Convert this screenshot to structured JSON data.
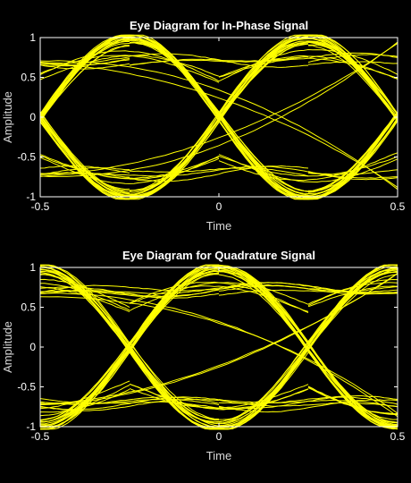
{
  "colors": {
    "background": "#000000",
    "axes_face": "#000000",
    "axes_edge": "#ffffff",
    "text": "#ffffff",
    "label": "#d9d9d9",
    "trace": "#ffff00"
  },
  "chart_data": [
    {
      "type": "line",
      "title": "Eye Diagram for In-Phase Signal",
      "xlabel": "Time",
      "ylabel": "Amplitude",
      "xlim": [
        -0.5,
        0.5
      ],
      "ylim": [
        -1,
        1
      ],
      "xticks": [
        -0.5,
        0,
        0.5
      ],
      "xtick_labels": [
        "-0.5",
        "0",
        "0.5"
      ],
      "yticks": [
        -1,
        -0.5,
        0,
        0.5,
        1
      ],
      "ytick_labels": [
        "-1",
        "-0.5",
        "0",
        "0.5",
        "1"
      ],
      "grid": false,
      "eye_crossing_times": [
        -0.5,
        0,
        0.5
      ],
      "eye_peak_times": [
        -0.25,
        0.25
      ],
      "signal_levels": [
        -1,
        -0.707,
        0,
        0.707,
        1
      ]
    },
    {
      "type": "line",
      "title": "Eye Diagram for Quadrature Signal",
      "xlabel": "Time",
      "ylabel": "Amplitude",
      "xlim": [
        -0.5,
        0.5
      ],
      "ylim": [
        -1,
        1
      ],
      "xticks": [
        -0.5,
        0,
        0.5
      ],
      "xtick_labels": [
        "-0.5",
        "0",
        "0.5"
      ],
      "yticks": [
        -1,
        -0.5,
        0,
        0.5,
        1
      ],
      "ytick_labels": [
        "-1",
        "-0.5",
        "0",
        "0.5",
        "1"
      ],
      "grid": false,
      "eye_crossing_times": [
        -0.25,
        0.25
      ],
      "eye_peak_times": [
        -0.5,
        0,
        0.5
      ],
      "signal_levels": [
        -1,
        -0.707,
        0,
        0.707,
        1
      ]
    }
  ]
}
